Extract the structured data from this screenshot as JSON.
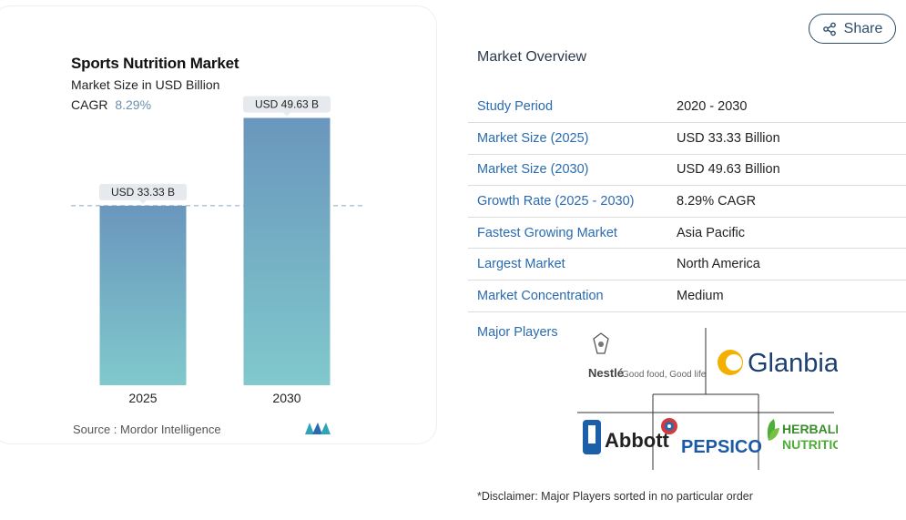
{
  "chart": {
    "title": "Sports Nutrition Market",
    "subtitle": "Market Size in USD Billion",
    "cagr_label": "CAGR",
    "cagr_value": "8.29%",
    "source": "Source :  Mordor Intelligence"
  },
  "chart_data": {
    "type": "bar",
    "title": "Sports Nutrition Market",
    "subtitle": "Market Size in USD Billion",
    "categories": [
      "2025",
      "2030"
    ],
    "values": [
      33.33,
      49.63
    ],
    "data_labels": [
      "USD 33.33 B",
      "USD 49.63 B"
    ],
    "ylim": [
      0,
      58
    ],
    "reference_line_at": 33.33,
    "grid": false,
    "colors": {
      "bar_top": "#6a96bd",
      "bar_bottom": "#80c9cc",
      "label_bg": "#e6eaee",
      "dash": "#8aa6c0"
    }
  },
  "share": {
    "label": "Share",
    "icon": "share-icon"
  },
  "overview": {
    "title": "Market Overview",
    "rows": [
      {
        "key": "Study Period",
        "value": "2020 - 2030"
      },
      {
        "key": "Market Size (2025)",
        "value": "USD 33.33 Billion"
      },
      {
        "key": "Market Size (2030)",
        "value": "USD 49.63 Billion"
      },
      {
        "key": "Growth Rate (2025 - 2030)",
        "value": "8.29% CAGR"
      },
      {
        "key": "Fastest Growing Market",
        "value": "Asia Pacific"
      },
      {
        "key": "Largest Market",
        "value": "North America"
      },
      {
        "key": "Market Concentration",
        "value": "Medium"
      }
    ],
    "players_label": "Major Players",
    "players": [
      {
        "name": "Nestlé",
        "tagline": "Good food, Good life"
      },
      {
        "name": "Glanbia"
      },
      {
        "name": "Abbott"
      },
      {
        "name": "PEPSICO"
      },
      {
        "name": "HERBALIFE",
        "tagline": "NUTRITION"
      }
    ],
    "disclaimer": "*Disclaimer: Major Players sorted in no particular order"
  },
  "colors": {
    "accent_link": "#2a6bb0",
    "share_border": "#2f4e6e"
  }
}
